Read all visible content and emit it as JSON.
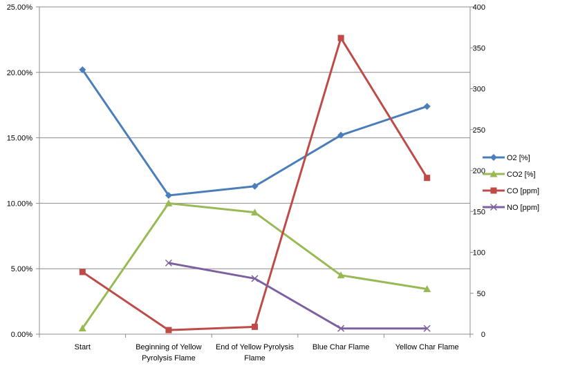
{
  "chart_data": {
    "type": "line",
    "title": "",
    "xlabel": "",
    "ylabel": "",
    "ylabel_right": "",
    "categories": [
      [
        "Start"
      ],
      [
        "Beginning of Yellow",
        "Pyrolysis Flame"
      ],
      [
        "End of Yellow Pyrolysis",
        "Flame"
      ],
      [
        "Blue Char Flame"
      ],
      [
        "Yellow Char Flame"
      ]
    ],
    "ylim": [
      0,
      25
    ],
    "ylim_right": [
      0,
      400
    ],
    "yticks_left": [
      "0.00%",
      "5.00%",
      "10.00%",
      "15.00%",
      "20.00%",
      "25.00%"
    ],
    "yticks_right": [
      "0",
      "50",
      "100",
      "150",
      "200",
      "250",
      "300",
      "350",
      "400"
    ],
    "grid": true,
    "legend_position": "right",
    "series": [
      {
        "name": "O2 [%]",
        "axis": "left",
        "color": "#4a7ebb",
        "marker": "diamond",
        "values": [
          20.2,
          10.6,
          11.3,
          15.2,
          17.4
        ]
      },
      {
        "name": "CO2 [%]",
        "axis": "left",
        "color": "#98b954",
        "marker": "triangle",
        "values": [
          0.45,
          10.0,
          9.3,
          4.5,
          3.45
        ]
      },
      {
        "name": "CO [ppm]",
        "axis": "right",
        "color": "#be4b48",
        "marker": "square",
        "values": [
          76,
          5,
          9,
          362,
          191
        ]
      },
      {
        "name": "NO [ppm]",
        "axis": "right",
        "color": "#7d60a0",
        "marker": "x",
        "values": [
          null,
          87,
          68,
          7,
          7
        ]
      }
    ]
  }
}
